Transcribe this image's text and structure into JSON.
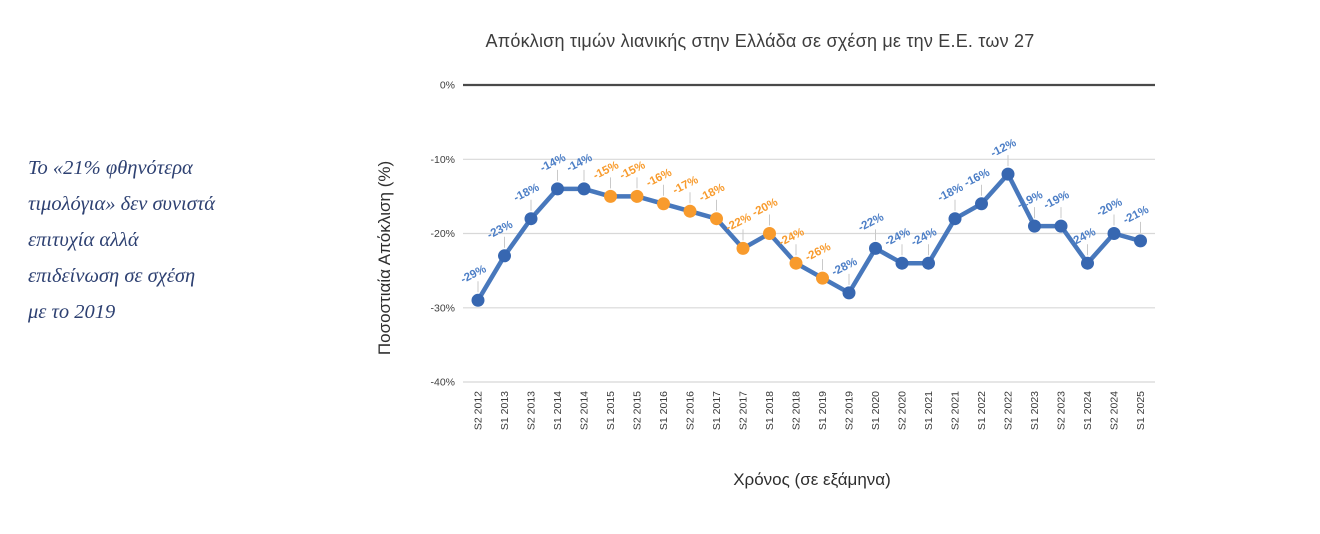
{
  "annotation": {
    "text": "Το «21% φθηνότερα\nτιμολόγια» δεν συνιστά\nεπιτυχία αλλά\nεπιδείνωση σε σχέση\nμε το 2019"
  },
  "chart_data": {
    "type": "line",
    "title": "Απόκλιση τιμών λιανικής στην Ελλάδα σε σχέση με την Ε.Ε. των 27",
    "xlabel": "Χρόνος (σε εξάμηνα)",
    "ylabel": "Ποσοστιαία Απόκλιση (%)",
    "ylim": [
      -40,
      0
    ],
    "grid": true,
    "legend": "none",
    "yticks": [
      {
        "value": 0,
        "label": "0%"
      },
      {
        "value": -10,
        "label": "-10%"
      },
      {
        "value": -20,
        "label": "-20%"
      },
      {
        "value": -30,
        "label": "-30%"
      },
      {
        "value": -40,
        "label": "-40%"
      }
    ],
    "categories": [
      "S2 2012",
      "S1 2013",
      "S2 2013",
      "S1 2014",
      "S2 2014",
      "S1 2015",
      "S2 2015",
      "S1 2016",
      "S2 2016",
      "S1 2017",
      "S2 2017",
      "S1 2018",
      "S2 2018",
      "S1 2019",
      "S2 2019",
      "S1 2020",
      "S2 2020",
      "S1 2021",
      "S2 2021",
      "S1 2022",
      "S2 2022",
      "S1 2023",
      "S2 2023",
      "S1 2024",
      "S2 2024",
      "S1 2025"
    ],
    "values": [
      -29,
      -23,
      -18,
      -14,
      -14,
      -15,
      -15,
      -16,
      -17,
      -18,
      -22,
      -20,
      -24,
      -26,
      -28,
      -22,
      -24,
      -24,
      -18,
      -16,
      -12,
      -19,
      -19,
      -24,
      -20,
      -21
    ],
    "point_labels": [
      "-29%",
      "-23%",
      "-18%",
      "-14%",
      "-14%",
      "-15%",
      "-15%",
      "-16%",
      "-17%",
      "-18%",
      "-22%",
      "-20%",
      "-24%",
      "-26%",
      "-28%",
      "-22%",
      "-24%",
      "-24%",
      "-18%",
      "-16%",
      "-12%",
      "-19%",
      "-19%",
      "-24%",
      "-20%",
      "-21%"
    ],
    "point_colors": [
      "blue",
      "blue",
      "blue",
      "blue",
      "blue",
      "orange",
      "orange",
      "orange",
      "orange",
      "orange",
      "orange",
      "orange",
      "orange",
      "orange",
      "blue",
      "blue",
      "blue",
      "blue",
      "blue",
      "blue",
      "blue",
      "blue",
      "blue",
      "blue",
      "blue",
      "blue"
    ],
    "colors": {
      "line": "#4878BC",
      "blue": "#3767B1",
      "orange": "#F89B2D",
      "label_blue": "#4C7EC6",
      "label_orange": "#F89B2D",
      "grid": "#D8D8D8",
      "zero_axis": "#4A4A4A",
      "leader": "#C9C9C9",
      "tick_text": "#3A3A3A"
    }
  }
}
